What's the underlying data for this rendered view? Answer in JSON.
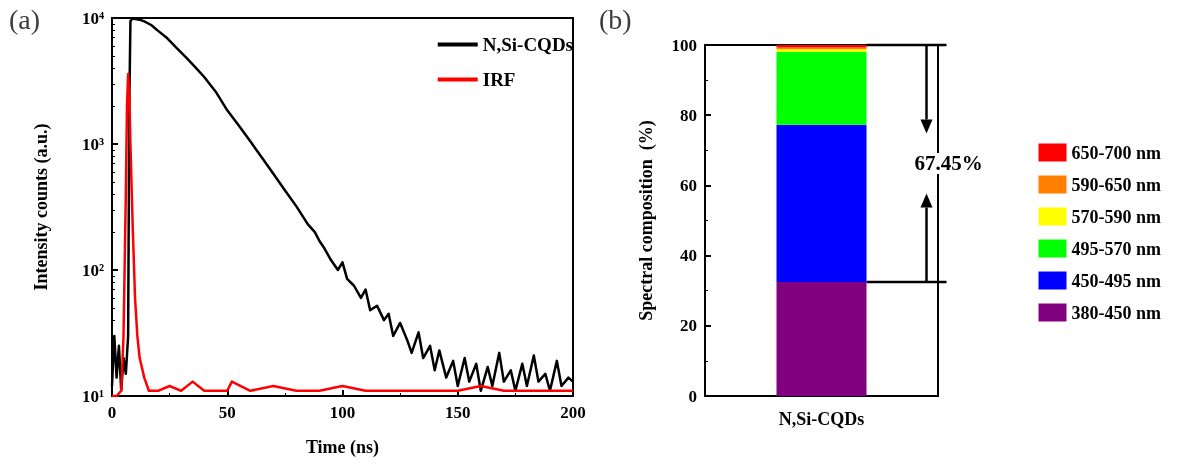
{
  "chart_data": [
    {
      "type": "line",
      "title": "(a)",
      "xlabel": "Time (ns)",
      "ylabel": "Intensity counts (a.u.)",
      "log": "y",
      "legend": "top right",
      "grid": false,
      "marker": "none",
      "line_style": "solid",
      "xlim": [
        0,
        200
      ],
      "xticks": [
        0,
        50,
        100,
        150,
        200
      ],
      "ylim": [
        10,
        10000
      ],
      "yticks": [
        {
          "value": 10,
          "label": "10¹"
        },
        {
          "value": 100,
          "label": "10²"
        },
        {
          "value": 1000,
          "label": "10³"
        },
        {
          "value": 10000,
          "label": "10⁴"
        }
      ],
      "series": [
        {
          "name": "N,Si-CQDs",
          "color": "#000000",
          "x": [
            0,
            1,
            2,
            3,
            4,
            5,
            6,
            7,
            7.5,
            8,
            9,
            10,
            12,
            14,
            17,
            20,
            24,
            28,
            32,
            36,
            40,
            45,
            50,
            55,
            60,
            65,
            70,
            75,
            80,
            85,
            88,
            90,
            92,
            95,
            98,
            100,
            102,
            105,
            108,
            110,
            112,
            115,
            118,
            120,
            122,
            125,
            128,
            130,
            133,
            135,
            138,
            140,
            142,
            145,
            148,
            150,
            153,
            155,
            158,
            160,
            163,
            165,
            168,
            170,
            173,
            175,
            178,
            180,
            183,
            185,
            188,
            190,
            193,
            195,
            198,
            200
          ],
          "values": [
            12,
            30,
            14,
            25,
            11,
            20,
            15,
            30,
            2000,
            9500,
            9900,
            9800,
            9700,
            9400,
            8800,
            7900,
            6900,
            5800,
            4900,
            4100,
            3400,
            2600,
            1850,
            1400,
            1050,
            780,
            580,
            430,
            320,
            230,
            200,
            170,
            150,
            120,
            100,
            115,
            85,
            75,
            60,
            70,
            48,
            52,
            40,
            45,
            30,
            38,
            28,
            22,
            32,
            20,
            25,
            16,
            23,
            14,
            19,
            12,
            20,
            13,
            18,
            11,
            17,
            12,
            22,
            13,
            16,
            11,
            18,
            12,
            21,
            13,
            15,
            11,
            19,
            12,
            14,
            13
          ]
        },
        {
          "name": "IRF",
          "color": "#ff0000",
          "x": [
            0,
            2,
            4,
            5,
            6,
            6.5,
            7,
            7.5,
            8,
            9,
            10,
            11,
            12,
            14,
            16,
            20,
            25,
            30,
            35,
            40,
            50,
            52,
            60,
            70,
            80,
            90,
            100,
            110,
            120,
            130,
            140,
            150,
            160,
            170,
            180,
            190,
            200
          ],
          "values": [
            10,
            10,
            11,
            30,
            400,
            2000,
            3600,
            2500,
            1000,
            215,
            60,
            30,
            20,
            14,
            11,
            11,
            12,
            11,
            13,
            11,
            11,
            13,
            11,
            12,
            11,
            11,
            12,
            11,
            11,
            11,
            11,
            11,
            12,
            11,
            11,
            11,
            11
          ]
        }
      ]
    },
    {
      "type": "bar",
      "title": "(b)",
      "ylabel": "Spectral composition  (%)",
      "stacked": true,
      "legend": "right",
      "grid": false,
      "categories": [
        "N,Si-CQDs"
      ],
      "ylim": [
        0,
        100
      ],
      "yticks": [
        0,
        20,
        40,
        60,
        80,
        100
      ],
      "annotations": [
        "67.45%"
      ],
      "series": [
        {
          "name": "380-450 nm",
          "color": "#800080",
          "values": [
            32.5
          ]
        },
        {
          "name": "450-495 nm",
          "color": "#0000ff",
          "values": [
            44.8
          ]
        },
        {
          "name": "495-570 nm",
          "color": "#00ff00",
          "values": [
            20.7
          ]
        },
        {
          "name": "570-590 nm",
          "color": "#ffff00",
          "values": [
            0.8
          ]
        },
        {
          "name": "590-650 nm",
          "color": "#ff8000",
          "values": [
            0.5
          ]
        },
        {
          "name": "650-700 nm",
          "color": "#ff0000",
          "values": [
            0.7
          ]
        }
      ]
    }
  ]
}
